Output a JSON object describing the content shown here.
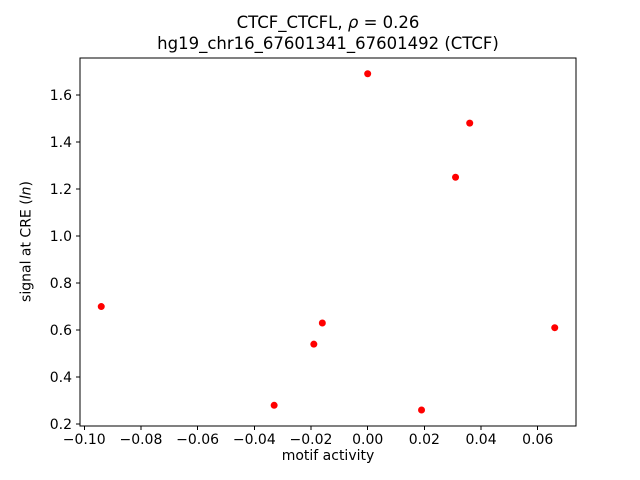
{
  "figure": {
    "background": "#ffffff",
    "title_line1": {
      "pre": "CTCF_CTCFL, ",
      "italic": "ρ",
      "post": " = 0.26"
    },
    "title_line2": "hg19_chr16_67601341_67601492 (CTCF)",
    "xlabel": "motif activity",
    "ylabel": {
      "pre": "signal at CRE (",
      "italic": "ln",
      "post": ")"
    }
  },
  "chart_data": {
    "type": "scatter",
    "title": "CTCF_CTCFL, ρ = 0.26",
    "subtitle": "hg19_chr16_67601341_67601492 (CTCF)",
    "xlabel": "motif activity",
    "ylabel": "signal at CRE (ln)",
    "xlim": [
      -0.1015,
      0.0735
    ],
    "ylim": [
      0.192,
      1.757
    ],
    "grid": false,
    "legend": false,
    "axis_color": "#000000",
    "marker": {
      "shape": "circle",
      "color": "#ff0000",
      "radius_px": 3.5
    },
    "xticks": [
      {
        "v": -0.1,
        "label": "−0.10"
      },
      {
        "v": -0.08,
        "label": "−0.08"
      },
      {
        "v": -0.06,
        "label": "−0.06"
      },
      {
        "v": -0.04,
        "label": "−0.04"
      },
      {
        "v": -0.02,
        "label": "−0.02"
      },
      {
        "v": 0.0,
        "label": "0.00"
      },
      {
        "v": 0.02,
        "label": "0.02"
      },
      {
        "v": 0.04,
        "label": "0.04"
      },
      {
        "v": 0.06,
        "label": "0.06"
      }
    ],
    "yticks": [
      {
        "v": 0.2,
        "label": "0.2"
      },
      {
        "v": 0.4,
        "label": "0.4"
      },
      {
        "v": 0.6,
        "label": "0.6"
      },
      {
        "v": 0.8,
        "label": "0.8"
      },
      {
        "v": 1.0,
        "label": "1.0"
      },
      {
        "v": 1.2,
        "label": "1.2"
      },
      {
        "v": 1.4,
        "label": "1.4"
      },
      {
        "v": 1.6,
        "label": "1.6"
      }
    ],
    "points": [
      {
        "x": 0.0,
        "y": 1.69
      },
      {
        "x": 0.036,
        "y": 1.48
      },
      {
        "x": 0.031,
        "y": 1.25
      },
      {
        "x": -0.094,
        "y": 0.7
      },
      {
        "x": -0.016,
        "y": 0.63
      },
      {
        "x": -0.019,
        "y": 0.54
      },
      {
        "x": 0.066,
        "y": 0.61
      },
      {
        "x": -0.033,
        "y": 0.28
      },
      {
        "x": 0.019,
        "y": 0.26
      }
    ]
  }
}
